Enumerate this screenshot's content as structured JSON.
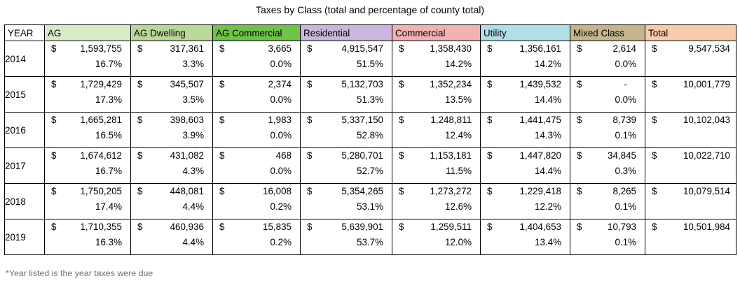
{
  "title": "Taxes by Class (total and percentage of county total)",
  "footnote": "*Year listed is the year taxes were due",
  "header_colors": {
    "YEAR": "#ffffff",
    "AG": "#d8ebc6",
    "AG Dwelling": "#b9d89a",
    "AG Commercial": "#70c24b",
    "Residential": "#c9b8dc",
    "Commercial": "#f0b2b2",
    "Utility": "#b2dee8",
    "Mixed Class": "#c4b58e",
    "Total": "#f8cbad"
  },
  "chart_data": {
    "type": "table",
    "columns": [
      "YEAR",
      "AG",
      "AG Dwelling",
      "AG Commercial",
      "Residential",
      "Commercial",
      "Utility",
      "Mixed Class",
      "Total"
    ],
    "currency_symbol": "$",
    "rows": [
      {
        "year": "2014",
        "cells": [
          {
            "amount": "1,593,755",
            "pct": "16.7%"
          },
          {
            "amount": "317,361",
            "pct": "3.3%"
          },
          {
            "amount": "3,665",
            "pct": "0.0%"
          },
          {
            "amount": "4,915,547",
            "pct": "51.5%"
          },
          {
            "amount": "1,358,430",
            "pct": "14.2%"
          },
          {
            "amount": "1,356,161",
            "pct": "14.2%"
          },
          {
            "amount": "2,614",
            "pct": "0.0%"
          }
        ],
        "total": "9,547,534"
      },
      {
        "year": "2015",
        "cells": [
          {
            "amount": "1,729,429",
            "pct": "17.3%"
          },
          {
            "amount": "345,507",
            "pct": "3.5%"
          },
          {
            "amount": "2,374",
            "pct": "0.0%"
          },
          {
            "amount": "5,132,703",
            "pct": "51.3%"
          },
          {
            "amount": "1,352,234",
            "pct": "13.5%"
          },
          {
            "amount": "1,439,532",
            "pct": "14.4%"
          },
          {
            "amount": "-",
            "pct": "0.0%"
          }
        ],
        "total": "10,001,779"
      },
      {
        "year": "2016",
        "cells": [
          {
            "amount": "1,665,281",
            "pct": "16.5%"
          },
          {
            "amount": "398,603",
            "pct": "3.9%"
          },
          {
            "amount": "1,983",
            "pct": "0.0%"
          },
          {
            "amount": "5,337,150",
            "pct": "52.8%"
          },
          {
            "amount": "1,248,811",
            "pct": "12.4%"
          },
          {
            "amount": "1,441,475",
            "pct": "14.3%"
          },
          {
            "amount": "8,739",
            "pct": "0.1%"
          }
        ],
        "total": "10,102,043"
      },
      {
        "year": "2017",
        "cells": [
          {
            "amount": "1,674,612",
            "pct": "16.7%"
          },
          {
            "amount": "431,082",
            "pct": "4.3%"
          },
          {
            "amount": "468",
            "pct": "0.0%"
          },
          {
            "amount": "5,280,701",
            "pct": "52.7%"
          },
          {
            "amount": "1,153,181",
            "pct": "11.5%"
          },
          {
            "amount": "1,447,820",
            "pct": "14.4%"
          },
          {
            "amount": "34,845",
            "pct": "0.3%"
          }
        ],
        "total": "10,022,710"
      },
      {
        "year": "2018",
        "cells": [
          {
            "amount": "1,750,205",
            "pct": "17.4%"
          },
          {
            "amount": "448,081",
            "pct": "4.4%"
          },
          {
            "amount": "16,008",
            "pct": "0.2%"
          },
          {
            "amount": "5,354,265",
            "pct": "53.1%"
          },
          {
            "amount": "1,273,272",
            "pct": "12.6%"
          },
          {
            "amount": "1,229,418",
            "pct": "12.2%"
          },
          {
            "amount": "8,265",
            "pct": "0.1%"
          }
        ],
        "total": "10,079,514"
      },
      {
        "year": "2019",
        "cells": [
          {
            "amount": "1,710,355",
            "pct": "16.3%"
          },
          {
            "amount": "460,936",
            "pct": "4.4%"
          },
          {
            "amount": "15,835",
            "pct": "0.2%"
          },
          {
            "amount": "5,639,901",
            "pct": "53.7%"
          },
          {
            "amount": "1,259,511",
            "pct": "12.0%"
          },
          {
            "amount": "1,404,653",
            "pct": "13.4%"
          },
          {
            "amount": "10,793",
            "pct": "0.1%"
          }
        ],
        "total": "10,501,984"
      }
    ]
  }
}
